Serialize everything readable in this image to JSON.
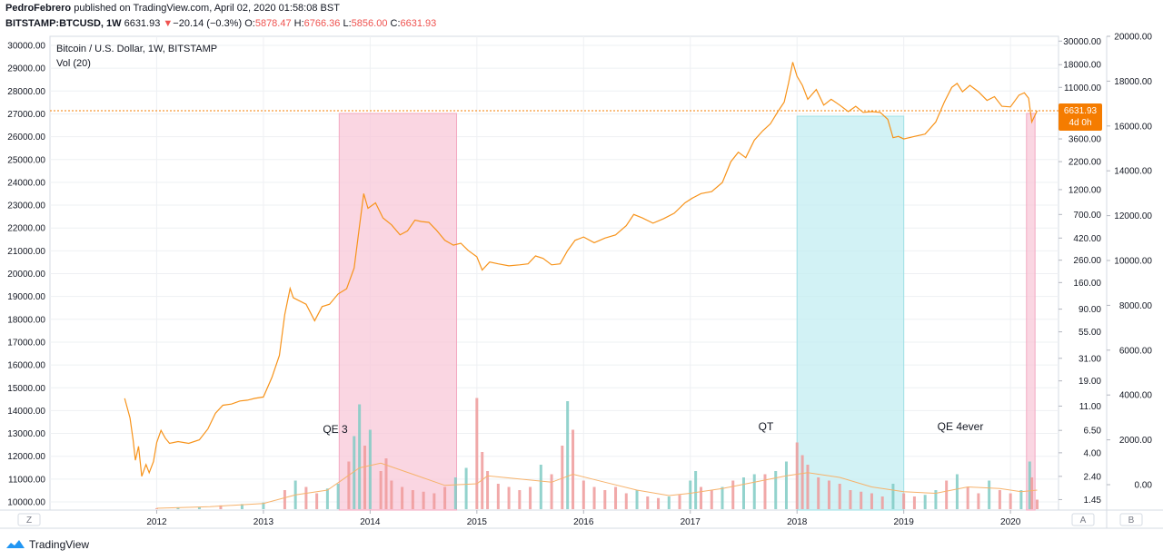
{
  "header": {
    "author": "PedroFebrero",
    "published_text": "published on TradingView.com, April 02, 2020 01:58:08 BST",
    "symbol_line": "BITSTAMP:BTCUSD, 1W",
    "last": "6631.93",
    "change_arrow": "▼",
    "change": "−20.14 (−0.3%)",
    "open_label": "O:",
    "open": "5878.47",
    "high_label": "H:",
    "high": "6766.36",
    "low_label": "L:",
    "low": "5856.00",
    "close_label": "C:",
    "close": "6631.93"
  },
  "footer": {
    "brand": "TradingView"
  },
  "scale_buttons": {
    "left": "Z",
    "mid": "A",
    "right": "B"
  },
  "colors": {
    "price_line": "#f7931a",
    "qe_band": "#f8c8d8",
    "qt_band": "#c3eef2",
    "vol_up": "#80cbc4",
    "vol_down": "#ef9a9a",
    "vol_ma": "#f6b26b",
    "last_price_badge": "#f57c00",
    "grid": "#eef0f3"
  },
  "chart_data": {
    "type": "line",
    "title": "Bitcoin / U.S. Dollar, 1W, BITSTAMP",
    "indicator": "Vol (20)",
    "log_scale": true,
    "grid": true,
    "x_ticks": [
      "2012",
      "2013",
      "2014",
      "2015",
      "2016",
      "2017",
      "2018",
      "2019",
      "2020"
    ],
    "left_axis": {
      "ticks": [
        "30000.00",
        "29000.00",
        "28000.00",
        "27000.00",
        "26000.00",
        "25000.00",
        "24000.00",
        "23000.00",
        "22000.00",
        "21000.00",
        "20000.00",
        "19000.00",
        "18000.00",
        "17000.00",
        "16000.00",
        "15000.00",
        "14000.00",
        "13000.00",
        "12000.00",
        "11000.00",
        "10000.00"
      ]
    },
    "right_axis_log": {
      "ticks": [
        "30000.00",
        "18000.00",
        "11000.00",
        "6631.93",
        "3600.00",
        "2200.00",
        "1200.00",
        "700.00",
        "420.00",
        "260.00",
        "160.00",
        "90.00",
        "55.00",
        "31.00",
        "19.00",
        "11.00",
        "6.50",
        "4.00",
        "2.40",
        "1.45"
      ]
    },
    "far_right_axis": {
      "ticks": [
        "20000.00",
        "18000.00",
        "16000.00",
        "14000.00",
        "12000.00",
        "10000.00",
        "8000.00",
        "6000.00",
        "4000.00",
        "2000.00",
        "0.00"
      ]
    },
    "last_price": {
      "value": "6631.93",
      "countdown": "4d 0h"
    },
    "series": [
      {
        "points": [
          [
            2011.7,
            13.0
          ],
          [
            2011.75,
            8.5
          ],
          [
            2011.78,
            5.2
          ],
          [
            2011.8,
            3.4
          ],
          [
            2011.83,
            4.6
          ],
          [
            2011.86,
            2.4
          ],
          [
            2011.9,
            3.1
          ],
          [
            2011.93,
            2.6
          ],
          [
            2011.97,
            3.3
          ],
          [
            2012.0,
            5.0
          ],
          [
            2012.04,
            6.5
          ],
          [
            2012.08,
            5.5
          ],
          [
            2012.12,
            4.9
          ],
          [
            2012.2,
            5.1
          ],
          [
            2012.3,
            4.9
          ],
          [
            2012.4,
            5.3
          ],
          [
            2012.48,
            6.7
          ],
          [
            2012.55,
            9.4
          ],
          [
            2012.62,
            11.2
          ],
          [
            2012.7,
            11.5
          ],
          [
            2012.78,
            12.3
          ],
          [
            2012.85,
            12.5
          ],
          [
            2012.92,
            13.0
          ],
          [
            2013.0,
            13.4
          ],
          [
            2013.08,
            20.5
          ],
          [
            2013.15,
            33.0
          ],
          [
            2013.2,
            80.0
          ],
          [
            2013.25,
            141.0
          ],
          [
            2013.28,
            115.0
          ],
          [
            2013.32,
            110.0
          ],
          [
            2013.4,
            100.0
          ],
          [
            2013.48,
            70.0
          ],
          [
            2013.55,
            95.0
          ],
          [
            2013.62,
            100.0
          ],
          [
            2013.7,
            125.0
          ],
          [
            2013.78,
            140.0
          ],
          [
            2013.85,
            220.0
          ],
          [
            2013.9,
            540.0
          ],
          [
            2013.94,
            1100.0
          ],
          [
            2013.98,
            800.0
          ],
          [
            2014.05,
            900.0
          ],
          [
            2014.12,
            650.0
          ],
          [
            2014.2,
            560.0
          ],
          [
            2014.28,
            450.0
          ],
          [
            2014.35,
            490.0
          ],
          [
            2014.42,
            620.0
          ],
          [
            2014.48,
            600.0
          ],
          [
            2014.55,
            590.0
          ],
          [
            2014.62,
            500.0
          ],
          [
            2014.7,
            400.0
          ],
          [
            2014.78,
            360.0
          ],
          [
            2014.85,
            375.0
          ],
          [
            2014.92,
            320.0
          ],
          [
            2015.0,
            280.0
          ],
          [
            2015.05,
            210.0
          ],
          [
            2015.12,
            250.0
          ],
          [
            2015.2,
            240.0
          ],
          [
            2015.3,
            230.0
          ],
          [
            2015.4,
            235.0
          ],
          [
            2015.48,
            240.0
          ],
          [
            2015.55,
            285.0
          ],
          [
            2015.62,
            270.0
          ],
          [
            2015.7,
            235.0
          ],
          [
            2015.78,
            240.0
          ],
          [
            2015.85,
            320.0
          ],
          [
            2015.92,
            400.0
          ],
          [
            2016.0,
            430.0
          ],
          [
            2016.1,
            380.0
          ],
          [
            2016.2,
            420.0
          ],
          [
            2016.3,
            450.0
          ],
          [
            2016.4,
            550.0
          ],
          [
            2016.47,
            700.0
          ],
          [
            2016.55,
            650.0
          ],
          [
            2016.65,
            580.0
          ],
          [
            2016.75,
            640.0
          ],
          [
            2016.85,
            720.0
          ],
          [
            2016.95,
            900.0
          ],
          [
            2017.02,
            1000.0
          ],
          [
            2017.1,
            1100.0
          ],
          [
            2017.2,
            1150.0
          ],
          [
            2017.3,
            1400.0
          ],
          [
            2017.38,
            2200.0
          ],
          [
            2017.45,
            2700.0
          ],
          [
            2017.52,
            2400.0
          ],
          [
            2017.6,
            3500.0
          ],
          [
            2017.68,
            4300.0
          ],
          [
            2017.75,
            5000.0
          ],
          [
            2017.82,
            6500.0
          ],
          [
            2017.88,
            8000.0
          ],
          [
            2017.92,
            12000.0
          ],
          [
            2017.96,
            19000.0
          ],
          [
            2018.0,
            14000.0
          ],
          [
            2018.05,
            11500.0
          ],
          [
            2018.1,
            8500.0
          ],
          [
            2018.18,
            10500.0
          ],
          [
            2018.25,
            7500.0
          ],
          [
            2018.32,
            8500.0
          ],
          [
            2018.4,
            7500.0
          ],
          [
            2018.48,
            6500.0
          ],
          [
            2018.55,
            7300.0
          ],
          [
            2018.62,
            6400.0
          ],
          [
            2018.7,
            6500.0
          ],
          [
            2018.78,
            6400.0
          ],
          [
            2018.85,
            5500.0
          ],
          [
            2018.9,
            3700.0
          ],
          [
            2018.95,
            3800.0
          ],
          [
            2019.0,
            3600.0
          ],
          [
            2019.1,
            3800.0
          ],
          [
            2019.2,
            4000.0
          ],
          [
            2019.3,
            5200.0
          ],
          [
            2019.38,
            8000.0
          ],
          [
            2019.45,
            11000.0
          ],
          [
            2019.5,
            12000.0
          ],
          [
            2019.55,
            10000.0
          ],
          [
            2019.62,
            11500.0
          ],
          [
            2019.7,
            10000.0
          ],
          [
            2019.78,
            8300.0
          ],
          [
            2019.85,
            9000.0
          ],
          [
            2019.92,
            7300.0
          ],
          [
            2020.0,
            7200.0
          ],
          [
            2020.08,
            9300.0
          ],
          [
            2020.13,
            9800.0
          ],
          [
            2020.17,
            8700.0
          ],
          [
            2020.2,
            5200.0
          ],
          [
            2020.25,
            6631.93
          ]
        ]
      }
    ],
    "bands": [
      {
        "label": "QE 3",
        "x_from": 2013.71,
        "x_to": 2014.81,
        "type": "qe"
      },
      {
        "label": "QT",
        "x_from": 2018.0,
        "x_to": 2019.0,
        "type": "qt"
      },
      {
        "label": "QE 4ever",
        "x_from": 2020.15,
        "x_to": 2020.23,
        "type": "qe"
      }
    ],
    "volume_max": 4000,
    "volume": [
      [
        2012.0,
        30
      ],
      [
        2012.2,
        45
      ],
      [
        2012.4,
        70
      ],
      [
        2012.6,
        120
      ],
      [
        2012.8,
        160
      ],
      [
        2013.0,
        210
      ],
      [
        2013.2,
        600
      ],
      [
        2013.3,
        900
      ],
      [
        2013.4,
        700
      ],
      [
        2013.5,
        500
      ],
      [
        2013.6,
        650
      ],
      [
        2013.7,
        800
      ],
      [
        2013.8,
        1500
      ],
      [
        2013.85,
        2300
      ],
      [
        2013.9,
        3300
      ],
      [
        2013.95,
        2000
      ],
      [
        2014.0,
        2500
      ],
      [
        2014.1,
        1200
      ],
      [
        2014.15,
        1600
      ],
      [
        2014.2,
        900
      ],
      [
        2014.3,
        700
      ],
      [
        2014.4,
        600
      ],
      [
        2014.5,
        550
      ],
      [
        2014.6,
        500
      ],
      [
        2014.7,
        700
      ],
      [
        2014.8,
        1000
      ],
      [
        2014.9,
        1300
      ],
      [
        2015.0,
        3500
      ],
      [
        2015.05,
        1800
      ],
      [
        2015.1,
        1200
      ],
      [
        2015.2,
        800
      ],
      [
        2015.3,
        700
      ],
      [
        2015.4,
        600
      ],
      [
        2015.5,
        700
      ],
      [
        2015.6,
        1400
      ],
      [
        2015.7,
        1100
      ],
      [
        2015.8,
        2000
      ],
      [
        2015.85,
        3400
      ],
      [
        2015.9,
        2500
      ],
      [
        2016.0,
        900
      ],
      [
        2016.1,
        700
      ],
      [
        2016.2,
        600
      ],
      [
        2016.3,
        700
      ],
      [
        2016.4,
        500
      ],
      [
        2016.5,
        600
      ],
      [
        2016.6,
        400
      ],
      [
        2016.7,
        350
      ],
      [
        2016.8,
        400
      ],
      [
        2016.9,
        450
      ],
      [
        2017.0,
        900
      ],
      [
        2017.05,
        1200
      ],
      [
        2017.1,
        700
      ],
      [
        2017.2,
        600
      ],
      [
        2017.3,
        700
      ],
      [
        2017.4,
        900
      ],
      [
        2017.5,
        1000
      ],
      [
        2017.6,
        1100
      ],
      [
        2017.7,
        1100
      ],
      [
        2017.8,
        1200
      ],
      [
        2017.9,
        1500
      ],
      [
        2018.0,
        2100
      ],
      [
        2018.05,
        1700
      ],
      [
        2018.1,
        1400
      ],
      [
        2018.2,
        1000
      ],
      [
        2018.3,
        900
      ],
      [
        2018.4,
        800
      ],
      [
        2018.5,
        600
      ],
      [
        2018.6,
        550
      ],
      [
        2018.7,
        500
      ],
      [
        2018.8,
        400
      ],
      [
        2018.9,
        800
      ],
      [
        2019.0,
        500
      ],
      [
        2019.1,
        400
      ],
      [
        2019.2,
        450
      ],
      [
        2019.3,
        600
      ],
      [
        2019.4,
        900
      ],
      [
        2019.5,
        1100
      ],
      [
        2019.6,
        700
      ],
      [
        2019.7,
        500
      ],
      [
        2019.8,
        900
      ],
      [
        2019.9,
        600
      ],
      [
        2020.0,
        500
      ],
      [
        2020.1,
        600
      ],
      [
        2020.18,
        1500
      ],
      [
        2020.2,
        1000
      ],
      [
        2020.25,
        300
      ]
    ],
    "volume_ma": [
      [
        2012.0,
        30
      ],
      [
        2012.5,
        80
      ],
      [
        2013.0,
        180
      ],
      [
        2013.3,
        450
      ],
      [
        2013.6,
        600
      ],
      [
        2013.9,
        1300
      ],
      [
        2014.1,
        1450
      ],
      [
        2014.4,
        1100
      ],
      [
        2014.7,
        750
      ],
      [
        2015.0,
        800
      ],
      [
        2015.1,
        1050
      ],
      [
        2015.4,
        950
      ],
      [
        2015.7,
        850
      ],
      [
        2015.9,
        1100
      ],
      [
        2016.2,
        850
      ],
      [
        2016.5,
        600
      ],
      [
        2016.8,
        430
      ],
      [
        2017.0,
        500
      ],
      [
        2017.3,
        650
      ],
      [
        2017.6,
        850
      ],
      [
        2017.9,
        1050
      ],
      [
        2018.1,
        1150
      ],
      [
        2018.4,
        1000
      ],
      [
        2018.7,
        700
      ],
      [
        2019.0,
        550
      ],
      [
        2019.3,
        500
      ],
      [
        2019.6,
        700
      ],
      [
        2019.9,
        650
      ],
      [
        2020.1,
        550
      ],
      [
        2020.25,
        600
      ]
    ]
  }
}
